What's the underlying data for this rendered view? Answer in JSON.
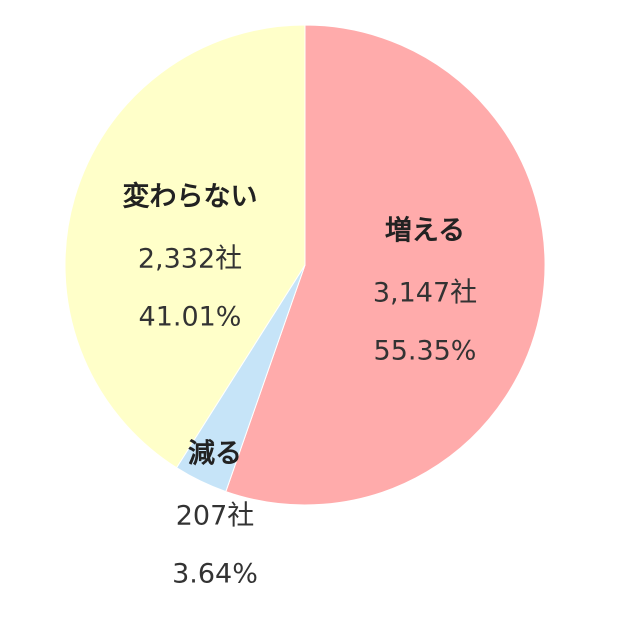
{
  "chart_data": {
    "type": "pie",
    "categories": [
      "増える",
      "減る",
      "変わらない"
    ],
    "values": [
      55.35,
      3.64,
      41.01
    ],
    "value_labels": [
      "55.35%",
      "3.64%",
      "41.01%"
    ],
    "counts": [
      3147,
      207,
      2332
    ],
    "count_labels": [
      "3,147社",
      "207社",
      "2,332社"
    ],
    "colors": [
      "#ffabab",
      "#c6e4f8",
      "#ffffc9"
    ]
  }
}
